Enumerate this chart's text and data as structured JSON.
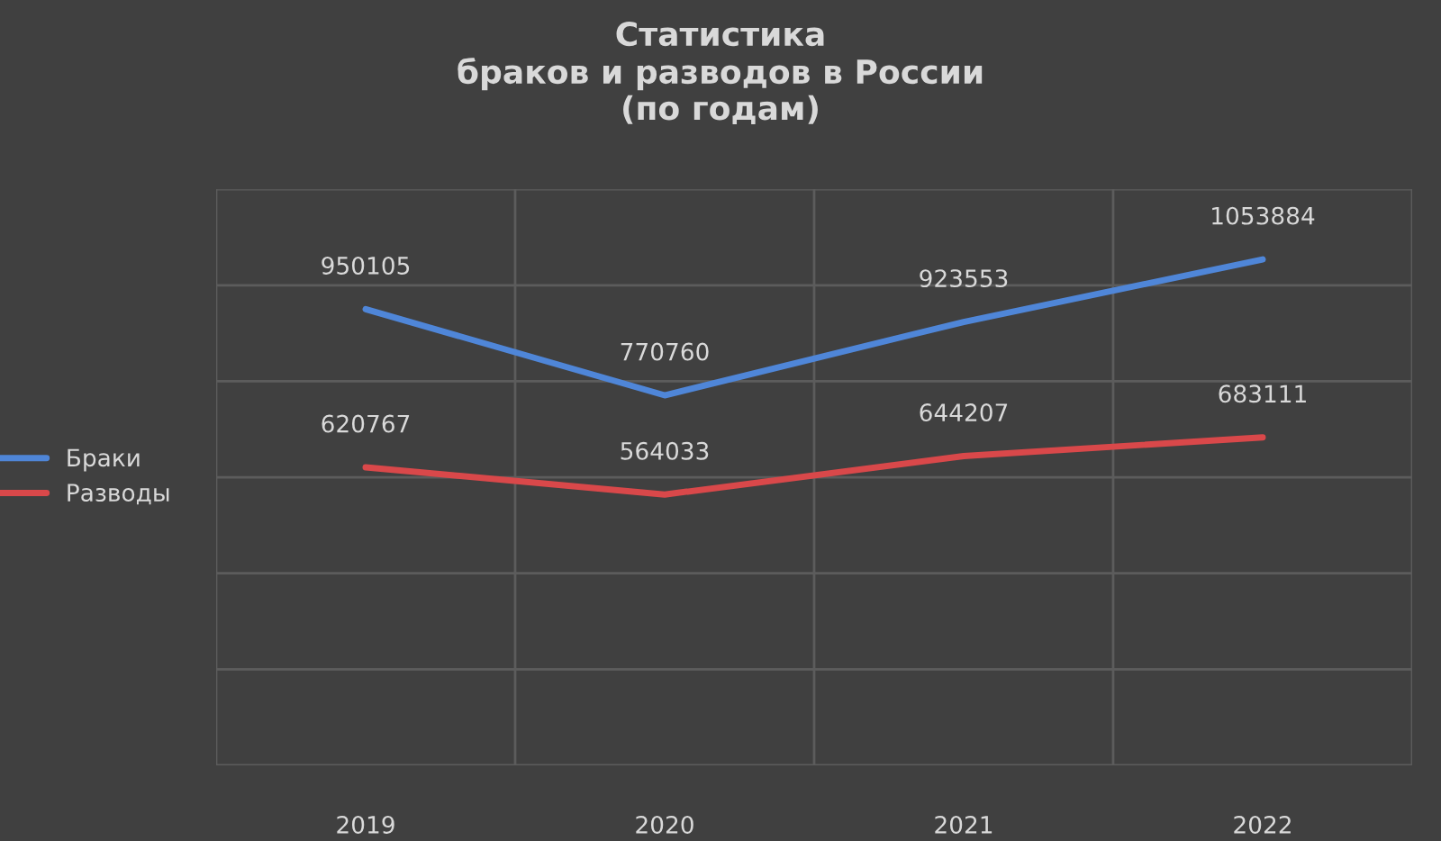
{
  "chart_data": {
    "type": "line",
    "title": "Статистика\nбраков и разводов в России\n(по годам)",
    "categories": [
      "2019",
      "2020",
      "2021",
      "2022"
    ],
    "series": [
      {
        "name": "Браки",
        "color": "#4f86d8",
        "values": [
          950105,
          770760,
          923553,
          1053884
        ]
      },
      {
        "name": "Разводы",
        "color": "#d9484a",
        "values": [
          620767,
          564033,
          644207,
          683111
        ]
      }
    ],
    "ylim": [
      0,
      1200000
    ],
    "yticks": [
      {
        "value": 0,
        "label": null
      },
      {
        "value": 200000,
        "label": null
      },
      {
        "value": 400000,
        "label": null
      },
      {
        "value": 600000,
        "label": null
      },
      {
        "value": 800000,
        "label": null
      },
      {
        "value": 1000000,
        "label": null
      },
      {
        "value": 1200000,
        "label": null
      }
    ],
    "tick_labels": "x",
    "grid": true,
    "legend": "left",
    "data_labels": true,
    "marker": "none",
    "line_style": "solid"
  }
}
